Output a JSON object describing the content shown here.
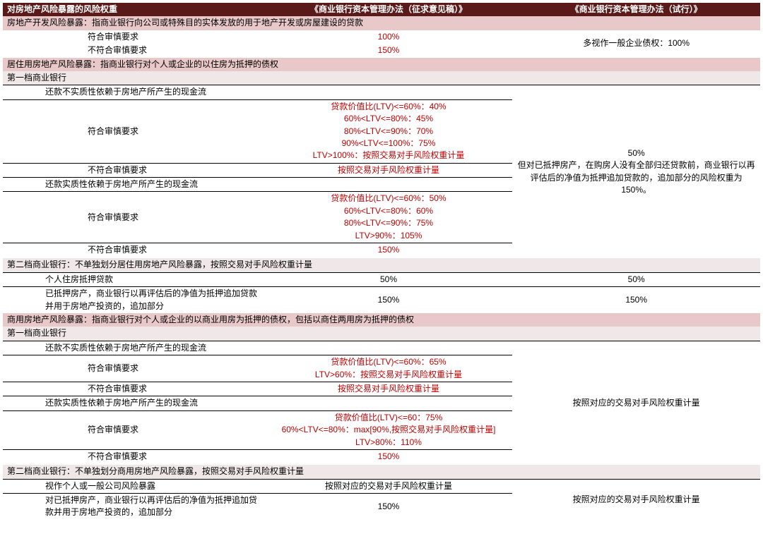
{
  "colors": {
    "header_bg": "#5b1a1a",
    "section_bg": "#e8c8c8",
    "sub_bg": "#f0e8e8",
    "red": "#c00000",
    "border": "#000000"
  },
  "header": {
    "c1": "对房地产风险暴露的风险权重",
    "c2": "《商业银行资本管理办法（征求意见稿）》",
    "c3": "《商业银行资本管理办法（试行）》"
  },
  "secA": {
    "title": "房地产开发风险暴露：指商业银行向公司或特殊目的实体发放的用于地产开发或房屋建设的贷款"
  },
  "a1": {
    "label": "符合审慎要求",
    "v1": "100%"
  },
  "a2": {
    "label": "不符合审慎要求",
    "v1": "150%"
  },
  "aRight": "多视作一般企业债权：100%",
  "secB": {
    "title": "居住用房地产风险暴露：指商业银行对个人或企业的以住房为抵押的债权"
  },
  "b_t1": "第一档商业银行",
  "b_sub1": "还款不实质性依赖于房地产所产生的现金流",
  "b1": {
    "label": "符合审慎要求",
    "v1": "贷款价值比(LTV)<=60%：40%\n60%<LTV<=80%：45%\n80%<LTV<=90%：70%\n90%<LTV<=100%：75%\nLTV>100%：按照交易对手风险权重计量"
  },
  "b2": {
    "label": "不符合审慎要求",
    "v1": "按照交易对手风险权重计量"
  },
  "b_sub2": "还款实质性依赖于房地产所产生的现金流",
  "b3": {
    "label": "符合审慎要求",
    "v1": "贷款价值比(LTV)<=60%：50%\n60%<LTV<=80%：60%\n80%<LTV<=90%：75%\nLTV>90%：105%"
  },
  "b4": {
    "label": "不符合审慎要求",
    "v1": "150%"
  },
  "bRight": "50%\n但对已抵押房产，在购房人没有全部归还贷款前，商业银行以再评估后的净值为抵押追加贷款的，追加部分的风险权重为150%。",
  "b_t2": "第二档商业银行：不单独划分居住用房地产风险暴露，按照交易对手风险权重计量",
  "b5": {
    "label": "个人住房抵押贷款",
    "v1": "50%",
    "v2": "50%"
  },
  "b6": {
    "label": "已抵押房产，商业银行以再评估后的净值为抵押追加贷款并用于房地产投资的，追加部分",
    "v1": "150%",
    "v2": "150%"
  },
  "secC": {
    "title": "商用房地产风险暴露：指商业银行对个人或企业的以商业用房为抵押的债权，包括以商住两用房为抵押的债权"
  },
  "c_t1": "第一档商业银行",
  "c_sub1": "还款不实质性依赖于房地产所产生的现金流",
  "c1": {
    "label": "符合审慎要求",
    "v1": "贷款价值比(LTV)<=60%：65%\nLTV>60%：按照交易对手风险权重计量"
  },
  "c2": {
    "label": "不符合审慎要求",
    "v1": "按照交易对手风险权重计量"
  },
  "c_sub2": "还款实质性依赖于房地产所产生的现金流",
  "c3": {
    "label": "符合审慎要求",
    "v1": "贷款价值比(LTV)<=60：75%\n60%<LTV<=80%：max[90%,按照交易对手风险权重计量]\nLTV>80%：110%"
  },
  "c4": {
    "label": "不符合审慎要求",
    "v1": "150%"
  },
  "cRight1": "按照对应的交易对手风险权重计量",
  "c_t2": "第二档商业银行：不单独划分商用房地产风险暴露，按照交易对手风险权重计量",
  "c5": {
    "label": "视作个人或一般公司风险暴露",
    "v1": "按照对应的交易对手风险权重计量"
  },
  "c6": {
    "label": "对已抵押房产，商业银行以再评估后的净值为抵押追加贷款并用于房地产投资的，追加部分",
    "v1": "150%"
  },
  "cRight2": "按照对应的交易对手风险权重计量"
}
